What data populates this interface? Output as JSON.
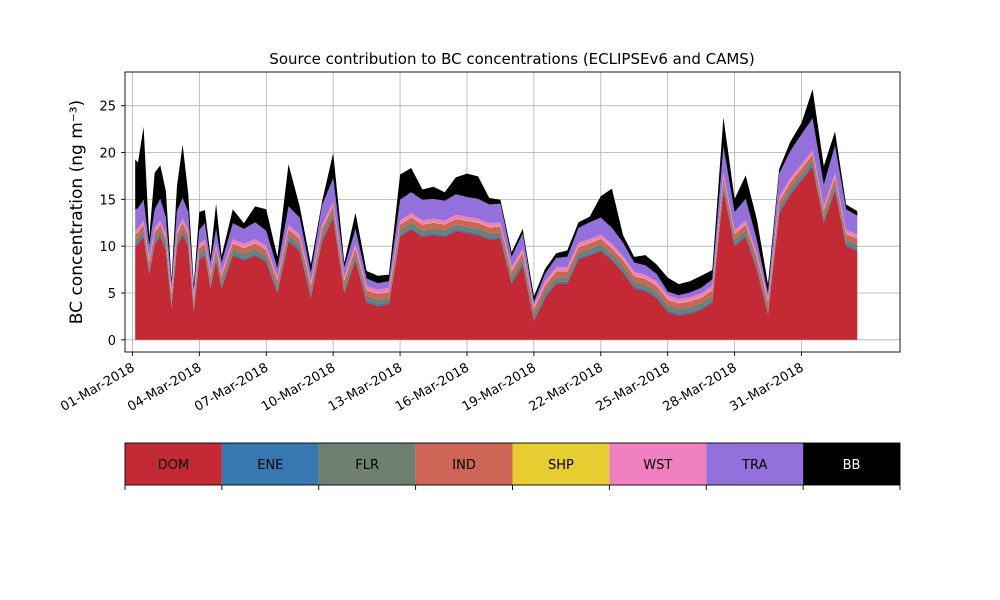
{
  "chart_data": {
    "type": "area",
    "stacked": true,
    "title": "Source contribution to BC concentrations (ECLIPSEv6 and CAMS)",
    "xlabel": "",
    "ylabel": "BC concentration (ng m⁻³)",
    "ylim": [
      -1.3,
      28.6
    ],
    "xlim": [
      "2018-02-28T16:00",
      "2018-04-04T10:00"
    ],
    "grid": true,
    "y_ticks": [
      0,
      5,
      10,
      15,
      20,
      25
    ],
    "x_ticks": [
      "01-Mar-2018",
      "04-Mar-2018",
      "07-Mar-2018",
      "10-Mar-2018",
      "13-Mar-2018",
      "16-Mar-2018",
      "19-Mar-2018",
      "22-Mar-2018",
      "25-Mar-2018",
      "28-Mar-2018",
      "31-Mar-2018"
    ],
    "x_tick_dates": [
      "2018-03-01",
      "2018-03-04",
      "2018-03-07",
      "2018-03-10",
      "2018-03-13",
      "2018-03-16",
      "2018-03-19",
      "2018-03-22",
      "2018-03-25",
      "2018-03-28",
      "2018-03-31"
    ],
    "x": [
      "2018-03-01T03:00",
      "2018-03-01T06:00",
      "2018-03-01T12:00",
      "2018-03-01T18:00",
      "2018-03-02T00:00",
      "2018-03-02T06:00",
      "2018-03-02T12:00",
      "2018-03-02T18:00",
      "2018-03-03T00:00",
      "2018-03-03T06:00",
      "2018-03-03T12:00",
      "2018-03-03T18:00",
      "2018-03-04T00:00",
      "2018-03-04T06:00",
      "2018-03-04T12:00",
      "2018-03-04T18:00",
      "2018-03-05T00:00",
      "2018-03-05T12:00",
      "2018-03-06T00:00",
      "2018-03-06T12:00",
      "2018-03-07T00:00",
      "2018-03-07T12:00",
      "2018-03-08T00:00",
      "2018-03-08T12:00",
      "2018-03-09T00:00",
      "2018-03-09T12:00",
      "2018-03-10T00:00",
      "2018-03-10T12:00",
      "2018-03-11T00:00",
      "2018-03-11T12:00",
      "2018-03-12T00:00",
      "2018-03-12T12:00",
      "2018-03-13T00:00",
      "2018-03-13T12:00",
      "2018-03-14T00:00",
      "2018-03-14T12:00",
      "2018-03-15T00:00",
      "2018-03-15T12:00",
      "2018-03-16T00:00",
      "2018-03-16T12:00",
      "2018-03-17T00:00",
      "2018-03-17T12:00",
      "2018-03-18T00:00",
      "2018-03-18T12:00",
      "2018-03-19T00:00",
      "2018-03-19T12:00",
      "2018-03-20T00:00",
      "2018-03-20T12:00",
      "2018-03-21T00:00",
      "2018-03-21T12:00",
      "2018-03-22T00:00",
      "2018-03-22T12:00",
      "2018-03-23T00:00",
      "2018-03-23T12:00",
      "2018-03-24T00:00",
      "2018-03-24T12:00",
      "2018-03-25T00:00",
      "2018-03-25T12:00",
      "2018-03-26T00:00",
      "2018-03-26T12:00",
      "2018-03-27T00:00",
      "2018-03-27T12:00",
      "2018-03-28T00:00",
      "2018-03-28T12:00",
      "2018-03-29T00:00",
      "2018-03-29T12:00",
      "2018-03-30T00:00",
      "2018-03-30T12:00",
      "2018-03-31T00:00",
      "2018-03-31T12:00",
      "2018-04-01T00:00",
      "2018-04-01T12:00",
      "2018-04-02T00:00",
      "2018-04-02T12:00"
    ],
    "series": [
      {
        "name": "DOM",
        "color": "#c42a35",
        "values": [
          10.0,
          10.2,
          11.0,
          7.0,
          10.2,
          11.0,
          9.5,
          3.5,
          10.0,
          11.2,
          10.0,
          3.0,
          8.5,
          9.0,
          5.5,
          8.5,
          5.5,
          9.0,
          8.5,
          9.0,
          8.3,
          5.0,
          10.5,
          9.5,
          4.5,
          10.5,
          13.0,
          5.0,
          8.5,
          4.0,
          3.6,
          3.8,
          11.0,
          11.8,
          11.0,
          11.2,
          11.0,
          11.6,
          11.4,
          11.2,
          10.7,
          10.8,
          6.0,
          8.0,
          2.0,
          4.5,
          6.0,
          6.0,
          8.6,
          9.0,
          9.5,
          8.5,
          7.2,
          5.5,
          5.2,
          4.5,
          3.0,
          2.6,
          2.8,
          3.2,
          4.0,
          16.0,
          10.0,
          11.0,
          7.5,
          2.7,
          13.5,
          15.5,
          17.0,
          18.5,
          12.5,
          16.0,
          10.0,
          9.5
        ]
      },
      {
        "name": "ENE",
        "color": "#3878b0",
        "values": [
          0.2,
          0.2,
          0.2,
          0.2,
          0.2,
          0.2,
          0.2,
          0.2,
          0.2,
          0.2,
          0.2,
          0.2,
          0.2,
          0.2,
          0.2,
          0.2,
          0.2,
          0.2,
          0.2,
          0.2,
          0.2,
          0.2,
          0.2,
          0.2,
          0.2,
          0.2,
          0.2,
          0.2,
          0.2,
          0.2,
          0.2,
          0.2,
          0.2,
          0.2,
          0.2,
          0.2,
          0.2,
          0.2,
          0.2,
          0.2,
          0.2,
          0.2,
          0.2,
          0.2,
          0.2,
          0.2,
          0.2,
          0.2,
          0.2,
          0.2,
          0.2,
          0.2,
          0.2,
          0.2,
          0.2,
          0.2,
          0.2,
          0.2,
          0.2,
          0.2,
          0.2,
          0.2,
          0.2,
          0.2,
          0.2,
          0.2,
          0.2,
          0.2,
          0.2,
          0.2,
          0.2,
          0.2,
          0.2,
          0.2
        ]
      },
      {
        "name": "FLR",
        "color": "#6e8070",
        "values": [
          0.5,
          0.5,
          0.5,
          0.5,
          0.5,
          0.5,
          0.5,
          0.5,
          0.5,
          0.5,
          0.5,
          0.5,
          0.5,
          0.5,
          0.5,
          0.5,
          0.5,
          0.5,
          0.5,
          0.5,
          0.5,
          0.5,
          0.5,
          0.5,
          0.5,
          0.5,
          0.5,
          0.5,
          0.5,
          0.5,
          0.5,
          0.5,
          0.5,
          0.5,
          0.5,
          0.5,
          0.5,
          0.5,
          0.5,
          0.5,
          0.5,
          0.5,
          0.5,
          0.5,
          0.5,
          0.5,
          0.5,
          0.5,
          0.5,
          0.5,
          0.5,
          0.5,
          0.5,
          0.5,
          0.5,
          0.5,
          0.5,
          0.5,
          0.5,
          0.5,
          0.5,
          0.5,
          0.5,
          0.5,
          0.5,
          0.5,
          0.5,
          0.5,
          0.5,
          0.5,
          0.5,
          0.5,
          0.5,
          0.5
        ]
      },
      {
        "name": "IND",
        "color": "#cc6555",
        "values": [
          0.6,
          0.6,
          0.6,
          0.6,
          0.6,
          0.6,
          0.6,
          0.6,
          0.6,
          0.6,
          0.6,
          0.6,
          0.6,
          0.6,
          0.6,
          0.6,
          0.6,
          0.6,
          0.6,
          0.6,
          0.6,
          0.6,
          0.6,
          0.6,
          0.6,
          0.6,
          0.6,
          0.6,
          0.6,
          0.6,
          0.6,
          0.6,
          0.6,
          0.6,
          0.6,
          0.6,
          0.6,
          0.6,
          0.6,
          0.6,
          0.6,
          0.6,
          0.6,
          0.6,
          0.6,
          0.6,
          0.6,
          0.6,
          0.6,
          0.6,
          0.6,
          0.6,
          0.6,
          0.6,
          0.6,
          0.6,
          0.6,
          0.6,
          0.6,
          0.6,
          0.6,
          0.6,
          0.6,
          0.6,
          0.6,
          0.6,
          0.6,
          0.6,
          0.6,
          0.6,
          0.6,
          0.6,
          0.6,
          0.6
        ]
      },
      {
        "name": "SHP",
        "color": "#e6cd30",
        "values": [
          0.05,
          0.05,
          0.05,
          0.05,
          0.05,
          0.05,
          0.05,
          0.05,
          0.05,
          0.05,
          0.05,
          0.05,
          0.05,
          0.05,
          0.05,
          0.05,
          0.05,
          0.05,
          0.05,
          0.05,
          0.05,
          0.05,
          0.05,
          0.05,
          0.05,
          0.05,
          0.05,
          0.05,
          0.05,
          0.05,
          0.05,
          0.05,
          0.05,
          0.05,
          0.05,
          0.05,
          0.05,
          0.05,
          0.05,
          0.05,
          0.05,
          0.05,
          0.05,
          0.05,
          0.05,
          0.05,
          0.05,
          0.05,
          0.05,
          0.05,
          0.05,
          0.05,
          0.05,
          0.05,
          0.05,
          0.05,
          0.05,
          0.05,
          0.05,
          0.05,
          0.05,
          0.05,
          0.05,
          0.05,
          0.05,
          0.05,
          0.05,
          0.05,
          0.05,
          0.05,
          0.05,
          0.05,
          0.05,
          0.05
        ]
      },
      {
        "name": "WST",
        "color": "#f07fbf",
        "values": [
          0.4,
          0.4,
          0.4,
          0.4,
          0.4,
          0.4,
          0.4,
          0.4,
          0.4,
          0.4,
          0.4,
          0.4,
          0.4,
          0.4,
          0.4,
          0.4,
          0.4,
          0.4,
          0.4,
          0.4,
          0.4,
          0.4,
          0.4,
          0.4,
          0.4,
          0.4,
          0.4,
          0.4,
          0.4,
          0.4,
          0.4,
          0.4,
          0.4,
          0.4,
          0.4,
          0.4,
          0.4,
          0.4,
          0.4,
          0.4,
          0.4,
          0.4,
          0.4,
          0.4,
          0.4,
          0.4,
          0.4,
          0.4,
          0.4,
          0.4,
          0.4,
          0.4,
          0.4,
          0.4,
          0.4,
          0.4,
          0.4,
          0.4,
          0.4,
          0.4,
          0.4,
          0.4,
          0.4,
          0.4,
          0.4,
          0.4,
          0.4,
          0.4,
          0.4,
          0.4,
          0.4,
          0.4,
          0.4,
          0.4
        ]
      },
      {
        "name": "TRA",
        "color": "#9370db",
        "values": [
          2.2,
          2.1,
          2.2,
          1.3,
          2.0,
          2.3,
          1.8,
          0.7,
          2.0,
          2.2,
          1.9,
          0.6,
          1.5,
          1.7,
          1.0,
          1.6,
          1.0,
          1.7,
          1.6,
          1.8,
          1.6,
          0.9,
          2.0,
          1.8,
          0.9,
          2.1,
          2.5,
          1.0,
          1.6,
          0.8,
          0.7,
          0.7,
          2.2,
          2.2,
          2.2,
          2.1,
          2.1,
          2.2,
          2.1,
          2.1,
          2.0,
          2.0,
          1.1,
          1.6,
          0.3,
          0.8,
          1.0,
          1.1,
          1.6,
          1.8,
          1.8,
          1.7,
          1.4,
          1.0,
          1.0,
          0.8,
          0.4,
          0.4,
          0.5,
          0.6,
          0.7,
          2.9,
          1.9,
          2.3,
          1.4,
          0.5,
          2.5,
          2.9,
          3.2,
          3.4,
          2.3,
          3.0,
          2.2,
          2.0
        ]
      },
      {
        "name": "BB",
        "color": "#000000",
        "values": [
          5.3,
          4.9,
          7.8,
          0.9,
          3.9,
          3.6,
          2.8,
          0.5,
          2.7,
          5.7,
          2.0,
          0.6,
          1.9,
          1.4,
          0.7,
          2.7,
          0.7,
          1.5,
          0.6,
          1.7,
          2.3,
          1.2,
          4.5,
          1.2,
          0.9,
          0.4,
          2.7,
          0.5,
          1.7,
          0.8,
          0.8,
          0.7,
          2.7,
          2.6,
          1.1,
          1.3,
          0.9,
          1.8,
          2.5,
          2.4,
          0.7,
          0.4,
          0.5,
          0.5,
          0.6,
          0.5,
          0.5,
          0.7,
          0.6,
          0.6,
          2.3,
          4.2,
          0.8,
          0.6,
          1.1,
          1.0,
          1.5,
          1.2,
          1.2,
          1.3,
          1.0,
          3.1,
          1.4,
          2.5,
          2.2,
          1.0,
          0.5,
          1.0,
          1.2,
          3.1,
          2.0,
          1.5,
          0.5,
          0.5
        ]
      }
    ],
    "legend": {
      "placement": "below",
      "labels": [
        "DOM",
        "ENE",
        "FLR",
        "IND",
        "SHP",
        "WST",
        "TRA",
        "BB"
      ],
      "text_colors": [
        "#000000",
        "#000000",
        "#000000",
        "#000000",
        "#000000",
        "#000000",
        "#000000",
        "#ffffff"
      ]
    }
  }
}
